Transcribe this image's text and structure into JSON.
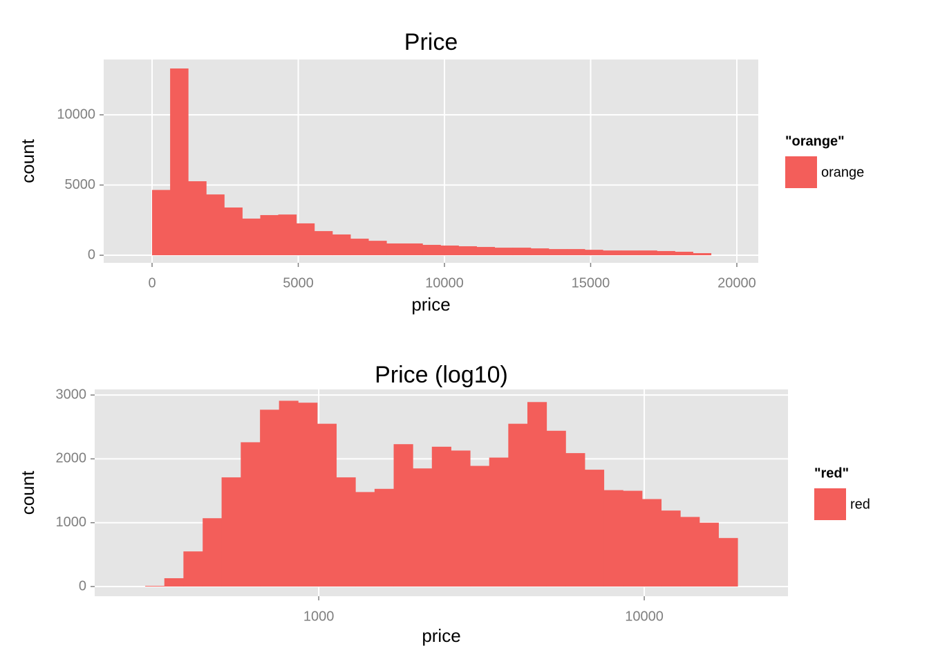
{
  "chart_data": [
    {
      "type": "histogram",
      "title": "Price",
      "x_label": "price",
      "y_label": "count",
      "bins": [
        0,
        617,
        1233,
        1850,
        2466,
        3083,
        3700,
        4316,
        4933,
        5549,
        6166,
        6783,
        7399,
        8016,
        8632,
        9249,
        9866,
        10482,
        11099,
        11715,
        12332,
        12949,
        13565,
        14182,
        14798,
        15415,
        16032,
        16648,
        17265,
        17881,
        18498,
        19115
      ],
      "series": [
        {
          "name": "orange",
          "color": "#f35e5a",
          "values": [
            4650,
            13300,
            5270,
            4330,
            3400,
            2610,
            2860,
            2900,
            2270,
            1720,
            1480,
            1180,
            1030,
            840,
            840,
            740,
            690,
            640,
            590,
            540,
            540,
            490,
            440,
            440,
            390,
            340,
            340,
            340,
            300,
            250,
            150
          ]
        }
      ],
      "legend_title": "\"orange\"",
      "xlim": [
        -1655,
        20733
      ],
      "ylim": [
        -540,
        13940
      ],
      "xticks": [
        0,
        5000,
        10000,
        15000,
        20000
      ],
      "yticks": [
        0,
        5000,
        10000
      ],
      "x_scale": "linear",
      "grid": true
    },
    {
      "type": "histogram",
      "title": "Price (log10)",
      "x_label": "price",
      "y_label": "count",
      "bins": [
        293,
        335.5,
        384,
        440,
        503,
        576,
        660,
        755,
        864,
        989,
        1132,
        1296,
        1484,
        1699,
        1945,
        2226,
        2548,
        2917,
        3339,
        3822,
        4375,
        5008,
        5733,
        6563,
        7513,
        8601,
        9845,
        11270,
        12901,
        14768,
        16904,
        19350
      ],
      "series": [
        {
          "name": "red",
          "color": "#f35e5a",
          "values": [
            10,
            130,
            550,
            1070,
            1710,
            2260,
            2770,
            2910,
            2880,
            2550,
            1710,
            1480,
            1530,
            2230,
            1850,
            2190,
            2130,
            1890,
            2020,
            2550,
            2890,
            2440,
            2090,
            1830,
            1510,
            1500,
            1370,
            1190,
            1090,
            1000,
            760
          ]
        }
      ],
      "legend_title": "\"red\"",
      "xlim": [
        205,
        27640
      ],
      "ylim": [
        -152,
        3088
      ],
      "xticks": [
        1000,
        10000
      ],
      "yticks": [
        0,
        1000,
        2000,
        3000
      ],
      "x_scale": "log",
      "grid": true
    }
  ]
}
